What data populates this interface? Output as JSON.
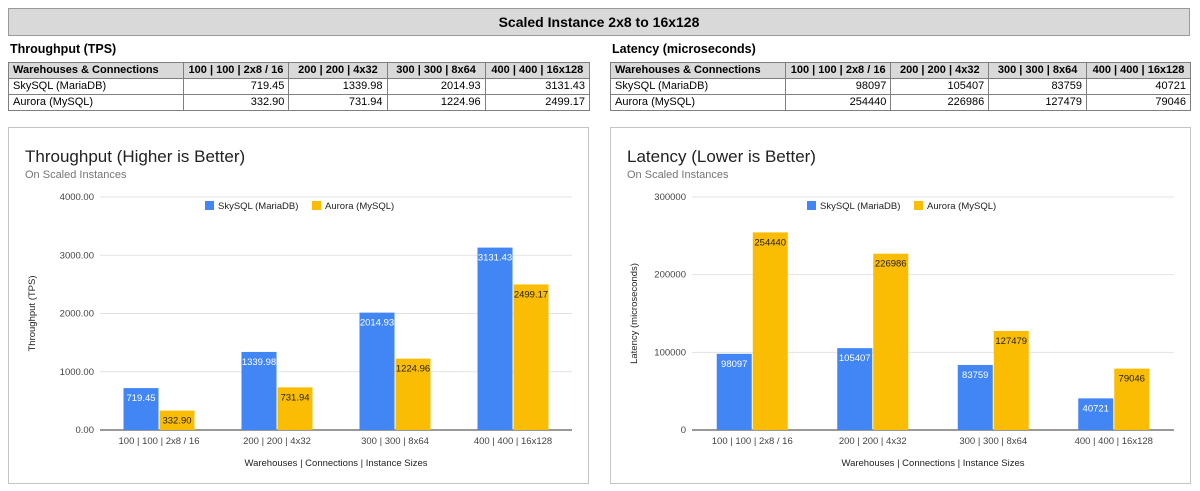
{
  "banner": "Scaled Instance 2x8 to 16x128",
  "throughput_table": {
    "title": "Throughput (TPS)",
    "headers": [
      "Warehouses & Connections",
      "100 | 100 | 2x8 / 16",
      "200 | 200 | 4x32",
      "300 | 300 | 8x64",
      "400 | 400 | 16x128"
    ],
    "rows": [
      {
        "name": "SkySQL (MariaDB)",
        "values": [
          "719.45",
          "1339.98",
          "2014.93",
          "3131.43"
        ]
      },
      {
        "name": "Aurora (MySQL)",
        "values": [
          "332.90",
          "731.94",
          "1224.96",
          "2499.17"
        ]
      }
    ]
  },
  "latency_table": {
    "title": "Latency (microseconds)",
    "headers": [
      "Warehouses & Connections",
      "100 | 100 | 2x8 / 16",
      "200 | 200 | 4x32",
      "300 | 300 | 8x64",
      "400 | 400 | 16x128"
    ],
    "rows": [
      {
        "name": "SkySQL (MariaDB)",
        "values": [
          "98097",
          "105407",
          "83759",
          "40721"
        ]
      },
      {
        "name": "Aurora (MySQL)",
        "values": [
          "254440",
          "226986",
          "127479",
          "79046"
        ]
      }
    ]
  },
  "colors": {
    "skysql": "#4285f4",
    "aurora": "#fbbc04"
  },
  "chart_data": [
    {
      "type": "bar",
      "title": "Throughput (Higher is Better)",
      "subtitle": "On Scaled Instances",
      "xlabel": "Warehouses | Connections | Instance Sizes",
      "ylabel": "Throughput (TPS)",
      "categories": [
        "100 | 100 | 2x8 / 16",
        "200 | 200 | 4x32",
        "300 | 300 | 8x64",
        "400 | 400 | 16x128"
      ],
      "series": [
        {
          "name": "SkySQL (MariaDB)",
          "values": [
            719.45,
            1339.98,
            2014.93,
            3131.43
          ],
          "labels": [
            "719.45",
            "1339.98",
            "2014.93",
            "3131.43"
          ]
        },
        {
          "name": "Aurora (MySQL)",
          "values": [
            332.9,
            731.94,
            1224.96,
            2499.17
          ],
          "labels": [
            "332.90",
            "731.94",
            "1224.96",
            "2499.17"
          ]
        }
      ],
      "ylim": [
        0,
        4000
      ],
      "yticks": [
        "0.00",
        "1000.00",
        "2000.00",
        "3000.00",
        "4000.00"
      ],
      "grid": true,
      "legend": "top"
    },
    {
      "type": "bar",
      "title": "Latency (Lower is Better)",
      "subtitle": "On Scaled Instances",
      "xlabel": "Warehouses | Connections | Instance Sizes",
      "ylabel": "Latency (microseconds)",
      "categories": [
        "100 | 100 | 2x8 / 16",
        "200 | 200 | 4x32",
        "300 | 300 | 8x64",
        "400 | 400 | 16x128"
      ],
      "series": [
        {
          "name": "SkySQL (MariaDB)",
          "values": [
            98097,
            105407,
            83759,
            40721
          ],
          "labels": [
            "98097",
            "105407",
            "83759",
            "40721"
          ]
        },
        {
          "name": "Aurora (MySQL)",
          "values": [
            254440,
            226986,
            127479,
            79046
          ],
          "labels": [
            "254440",
            "226986",
            "127479",
            "79046"
          ]
        }
      ],
      "ylim": [
        0,
        300000
      ],
      "yticks": [
        "0",
        "100000",
        "200000",
        "300000"
      ],
      "grid": true,
      "legend": "top"
    }
  ]
}
